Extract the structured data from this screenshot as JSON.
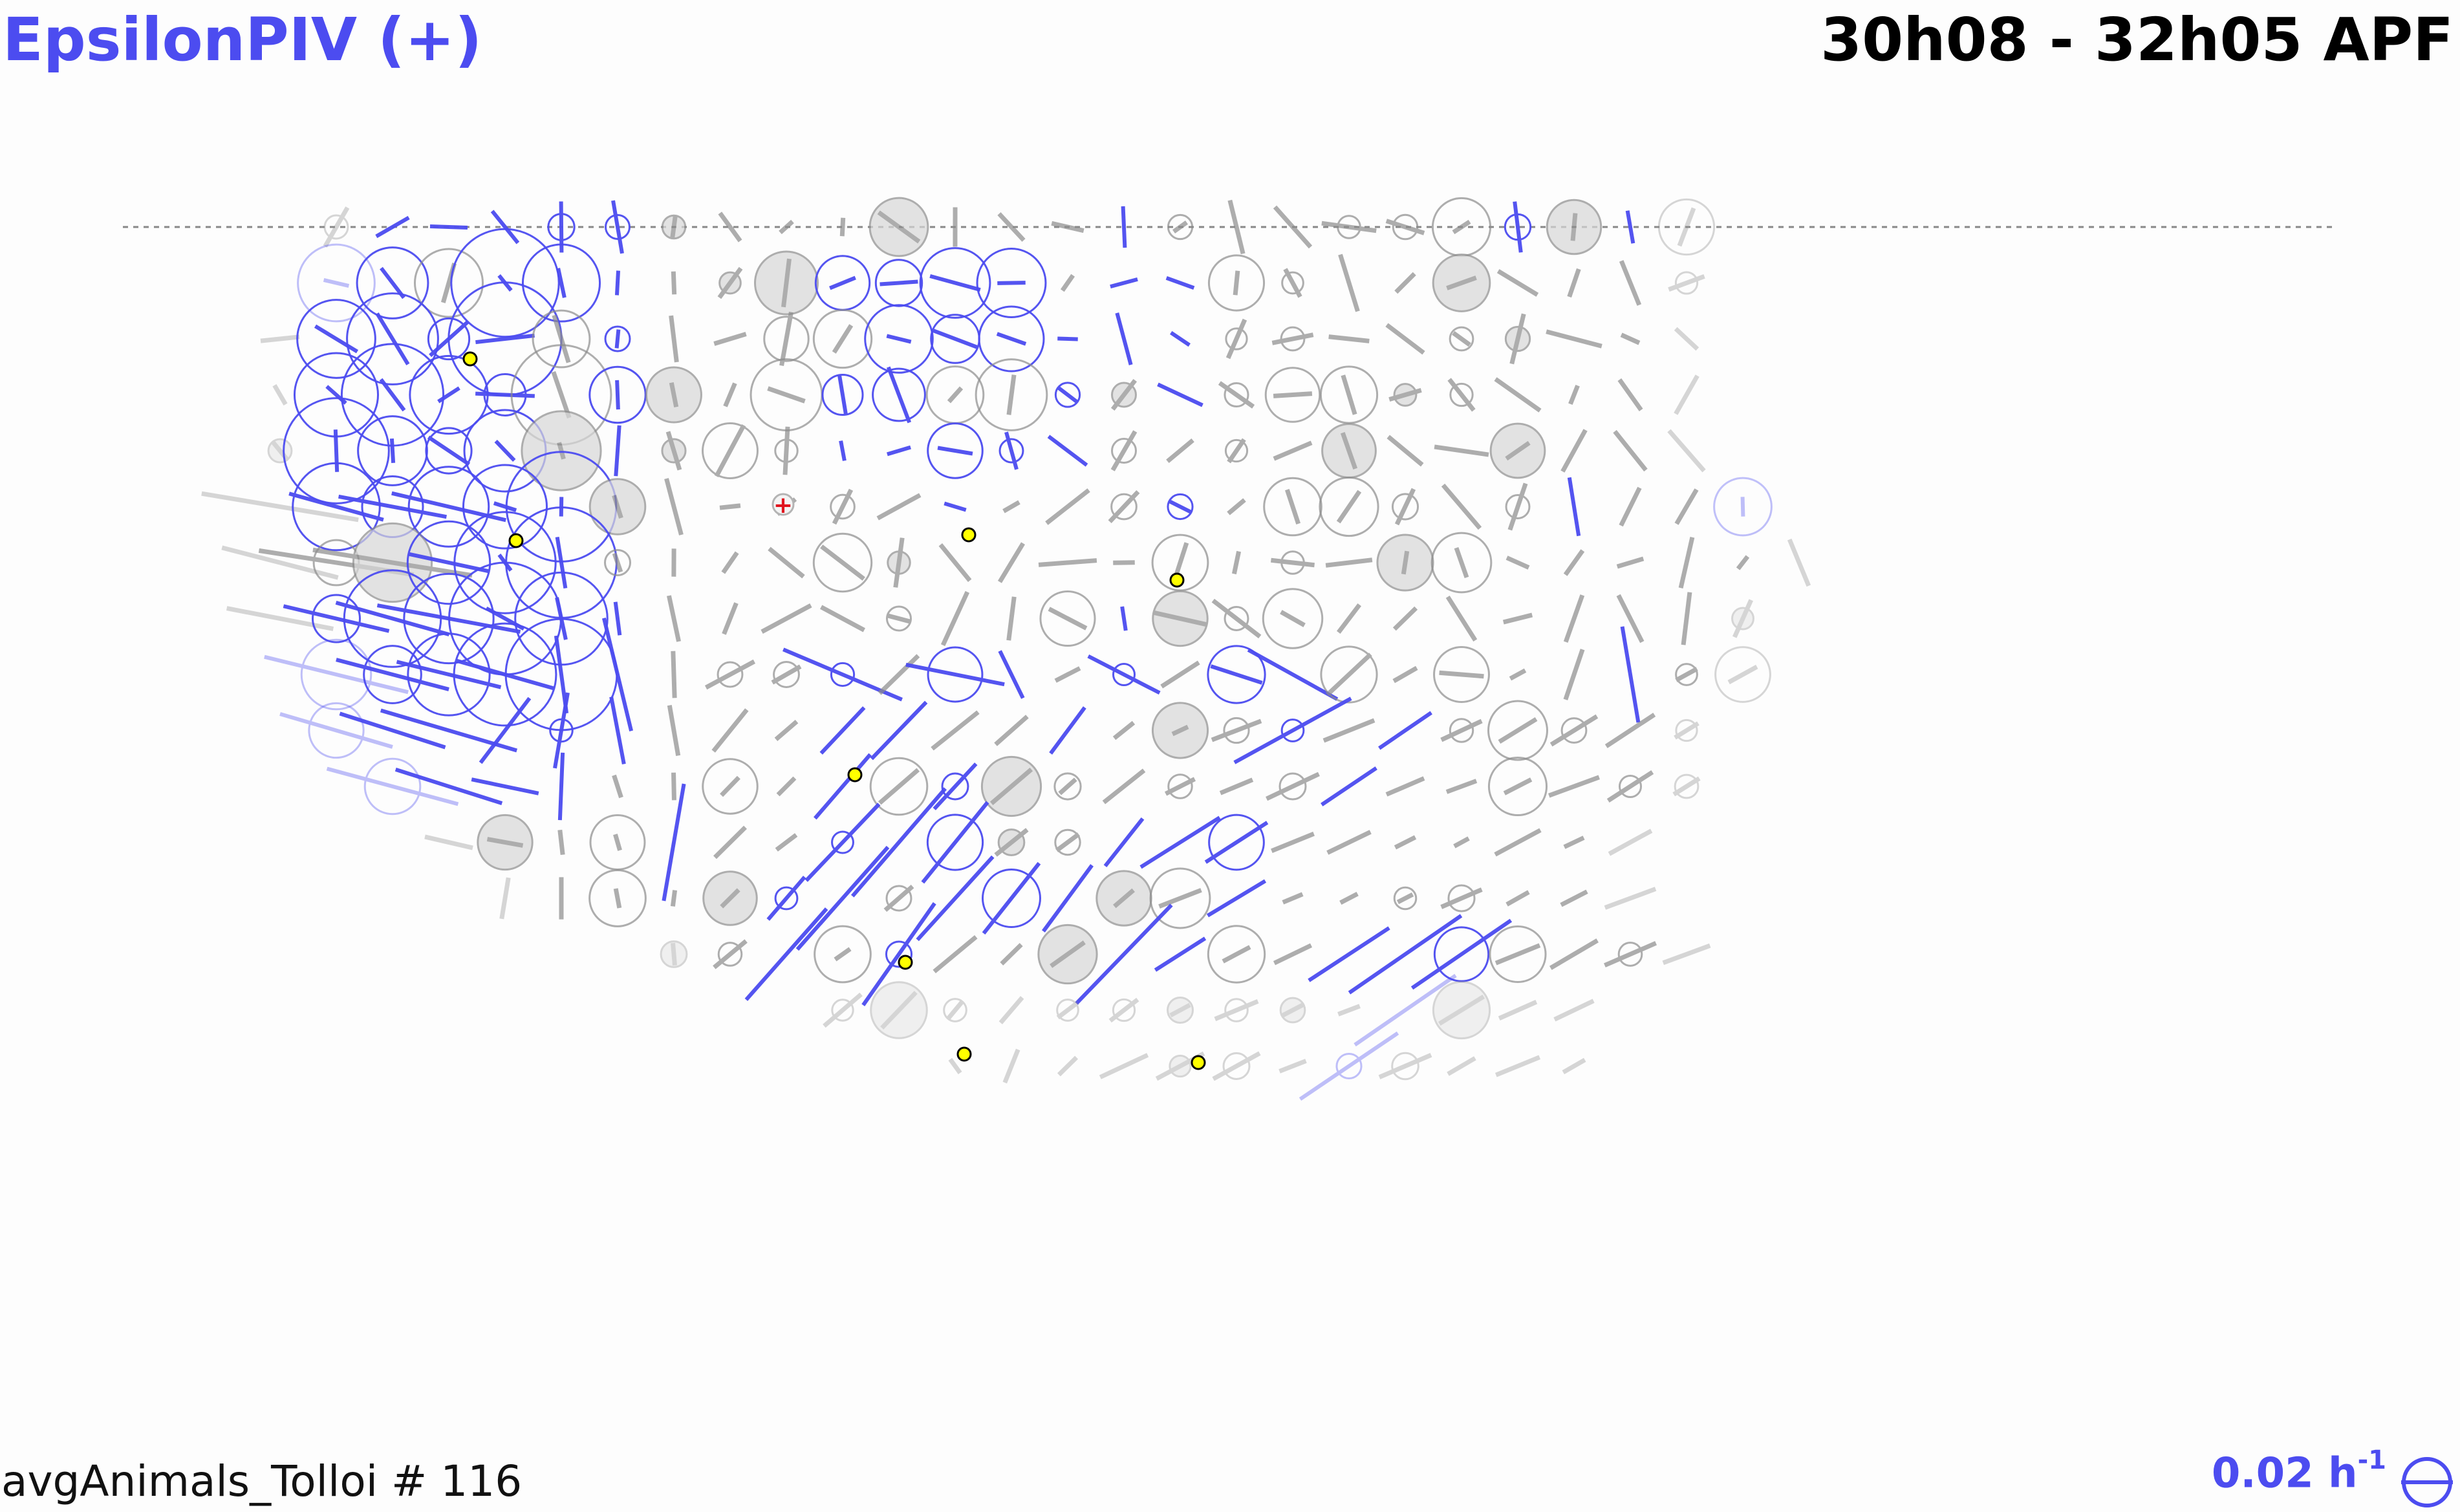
{
  "title": "EpsilonPIV (+)",
  "time_range": "30h08 - 32h05 APF",
  "footer_label": "avgAnimals_Tolloi # 116",
  "scale": {
    "value": "0.02 h",
    "exponent": "-1"
  },
  "colors": {
    "accent": "#4c4cf0",
    "gray_mark": "#8c8c8c",
    "landmark_fill": "#ffff00",
    "origin_mark": "#e0141e"
  },
  "icons": {
    "scale_symbol": "circle-with-bar-icon",
    "origin": "plus-icon"
  }
}
